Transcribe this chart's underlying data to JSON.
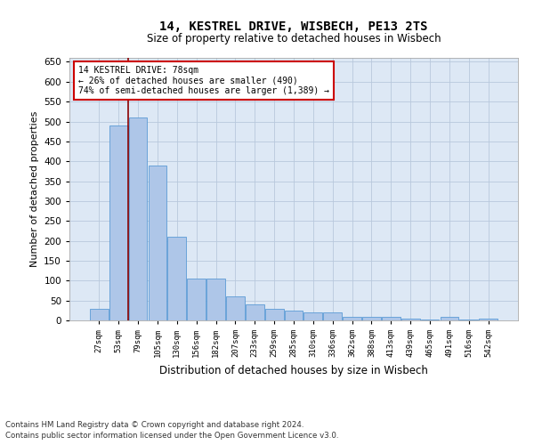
{
  "title": "14, KESTREL DRIVE, WISBECH, PE13 2TS",
  "subtitle": "Size of property relative to detached houses in Wisbech",
  "xlabel": "Distribution of detached houses by size in Wisbech",
  "ylabel": "Number of detached properties",
  "footnote1": "Contains HM Land Registry data © Crown copyright and database right 2024.",
  "footnote2": "Contains public sector information licensed under the Open Government Licence v3.0.",
  "annotation_line1": "14 KESTREL DRIVE: 78sqm",
  "annotation_line2": "← 26% of detached houses are smaller (490)",
  "annotation_line3": "74% of semi-detached houses are larger (1,389) →",
  "bar_color": "#aec6e8",
  "bar_edge_color": "#5b9bd5",
  "vline_color": "#8b0000",
  "annotation_box_color": "#ffffff",
  "annotation_box_edge": "#cc0000",
  "background_color": "#dde8f5",
  "categories": [
    "27sqm",
    "53sqm",
    "79sqm",
    "105sqm",
    "130sqm",
    "156sqm",
    "182sqm",
    "207sqm",
    "233sqm",
    "259sqm",
    "285sqm",
    "310sqm",
    "336sqm",
    "362sqm",
    "388sqm",
    "413sqm",
    "439sqm",
    "465sqm",
    "491sqm",
    "516sqm",
    "542sqm"
  ],
  "values": [
    30,
    490,
    510,
    390,
    210,
    105,
    105,
    60,
    40,
    30,
    25,
    20,
    20,
    10,
    8,
    8,
    5,
    3,
    8,
    3,
    5
  ],
  "ylim": [
    0,
    660
  ],
  "yticks": [
    0,
    50,
    100,
    150,
    200,
    250,
    300,
    350,
    400,
    450,
    500,
    550,
    600,
    650
  ],
  "vline_x": 1.5
}
